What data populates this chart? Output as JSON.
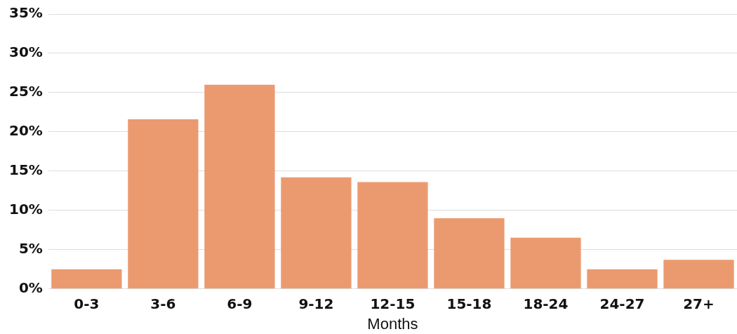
{
  "chart_data": {
    "type": "bar",
    "xlabel": "Months",
    "categories": [
      "0-3",
      "3-6",
      "6-9",
      "9-12",
      "12-15",
      "15-18",
      "18-24",
      "24-27",
      "27+"
    ],
    "values": [
      2.5,
      21.6,
      26,
      14.2,
      13.6,
      9,
      6.5,
      2.5,
      3.7
    ],
    "color": "#eb9a70",
    "ylim": [
      0,
      35
    ],
    "yticks": [
      {
        "value": 0,
        "label": "0%"
      },
      {
        "value": 5,
        "label": "5%"
      },
      {
        "value": 10,
        "label": "10%"
      },
      {
        "value": 15,
        "label": "15%"
      },
      {
        "value": 20,
        "label": "20%"
      },
      {
        "value": 25,
        "label": "25%"
      },
      {
        "value": 30,
        "label": "30%"
      },
      {
        "value": 35,
        "label": "35%"
      }
    ],
    "grid": "y",
    "legend": false
  }
}
